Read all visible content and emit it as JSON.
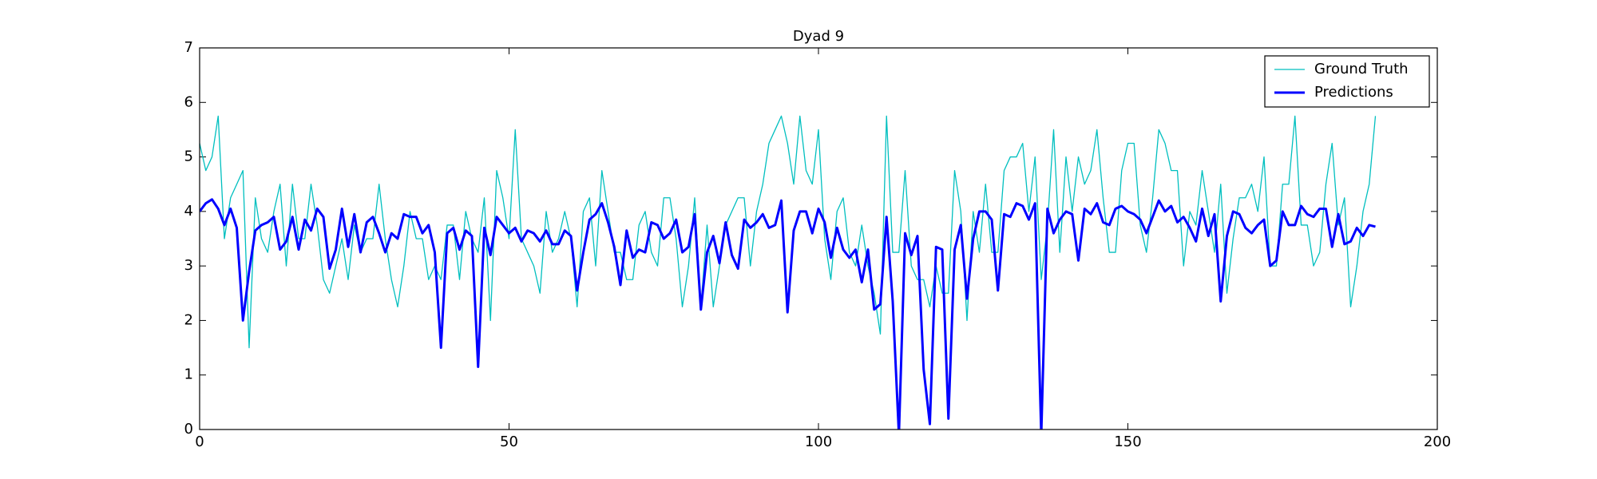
{
  "chart_data": {
    "type": "line",
    "title": "Dyad 9",
    "x": [
      0,
      1,
      2,
      3,
      4,
      5,
      6,
      7,
      8,
      9,
      10,
      11,
      12,
      13,
      14,
      15,
      16,
      17,
      18,
      19,
      20,
      21,
      22,
      23,
      24,
      25,
      26,
      27,
      28,
      29,
      30,
      31,
      32,
      33,
      34,
      35,
      36,
      37,
      38,
      39,
      40,
      41,
      42,
      43,
      44,
      45,
      46,
      47,
      48,
      49,
      50,
      51,
      52,
      53,
      54,
      55,
      56,
      57,
      58,
      59,
      60,
      61,
      62,
      63,
      64,
      65,
      66,
      67,
      68,
      69,
      70,
      71,
      72,
      73,
      74,
      75,
      76,
      77,
      78,
      79,
      80,
      81,
      82,
      83,
      84,
      85,
      86,
      87,
      88,
      89,
      90,
      91,
      92,
      93,
      94,
      95,
      96,
      97,
      98,
      99,
      100,
      101,
      102,
      103,
      104,
      105,
      106,
      107,
      108,
      109,
      110,
      111,
      112,
      113,
      114,
      115,
      116,
      117,
      118,
      119,
      120,
      121,
      122,
      123,
      124,
      125,
      126,
      127,
      128,
      129,
      130,
      131,
      132,
      133,
      134,
      135,
      136,
      137,
      138,
      139,
      140,
      141,
      142,
      143,
      144,
      145,
      146,
      147,
      148,
      149,
      150,
      151,
      152,
      153,
      154,
      155,
      156,
      157,
      158,
      159,
      160,
      161,
      162,
      163,
      164,
      165,
      166,
      167,
      168,
      169,
      170,
      171,
      172,
      173,
      174,
      175,
      176,
      177,
      178,
      179,
      180,
      181,
      182,
      183,
      184,
      185,
      186,
      187,
      188,
      189,
      190
    ],
    "series": [
      {
        "name": "Ground Truth",
        "color": "#00bfbf",
        "width": 1.3,
        "values": [
          5.25,
          4.75,
          5.0,
          5.75,
          3.5,
          4.25,
          4.5,
          4.75,
          1.5,
          4.25,
          3.5,
          3.25,
          4.0,
          4.5,
          3.0,
          4.5,
          3.5,
          3.5,
          4.5,
          3.75,
          2.75,
          2.5,
          3.0,
          3.5,
          2.75,
          3.75,
          3.25,
          3.5,
          3.5,
          4.5,
          3.5,
          2.75,
          2.25,
          3.0,
          4.0,
          3.5,
          3.5,
          2.75,
          3.0,
          2.75,
          3.75,
          3.75,
          2.75,
          4.0,
          3.5,
          3.25,
          4.25,
          2.0,
          4.75,
          4.25,
          3.5,
          5.5,
          3.5,
          3.25,
          3.0,
          2.5,
          4.0,
          3.25,
          3.5,
          4.0,
          3.5,
          2.25,
          4.0,
          4.25,
          3.0,
          4.75,
          4.0,
          3.25,
          3.25,
          2.75,
          2.75,
          3.75,
          4.0,
          3.25,
          3.0,
          4.25,
          4.25,
          3.5,
          2.25,
          3.0,
          4.25,
          2.25,
          3.75,
          2.25,
          3.0,
          3.75,
          4.0,
          4.25,
          4.25,
          3.0,
          4.0,
          4.5,
          5.25,
          5.5,
          5.75,
          5.25,
          4.5,
          5.75,
          4.75,
          4.5,
          5.5,
          3.5,
          2.75,
          4.0,
          4.25,
          3.25,
          3.0,
          3.75,
          3.0,
          2.5,
          1.75,
          5.75,
          3.25,
          3.25,
          4.75,
          3.0,
          2.75,
          2.75,
          2.25,
          3.0,
          2.5,
          2.5,
          4.75,
          4.0,
          2.0,
          4.0,
          3.25,
          4.5,
          3.25,
          3.25,
          4.75,
          5.0,
          5.0,
          5.25,
          4.0,
          5.0,
          2.75,
          3.75,
          5.5,
          3.25,
          5.0,
          4.0,
          5.0,
          4.5,
          4.75,
          5.5,
          4.25,
          3.25,
          3.25,
          4.75,
          5.25,
          5.25,
          3.75,
          3.25,
          4.25,
          5.5,
          5.25,
          4.75,
          4.75,
          3.0,
          4.0,
          3.75,
          4.75,
          4.0,
          3.25,
          4.5,
          2.5,
          3.5,
          4.25,
          4.25,
          4.5,
          4.0,
          5.0,
          3.0,
          3.0,
          4.5,
          4.5,
          5.75,
          3.75,
          3.75,
          3.0,
          3.25,
          4.5,
          5.25,
          3.75,
          4.25,
          2.25,
          3.0,
          4.0,
          4.5,
          5.75
        ]
      },
      {
        "name": "Predictions",
        "color": "#0000ff",
        "width": 3,
        "values": [
          4.0,
          4.15,
          4.22,
          4.05,
          3.75,
          4.05,
          3.7,
          2.0,
          2.9,
          3.65,
          3.75,
          3.8,
          3.9,
          3.3,
          3.45,
          3.9,
          3.3,
          3.85,
          3.65,
          4.05,
          3.9,
          2.95,
          3.3,
          4.05,
          3.35,
          3.95,
          3.25,
          3.8,
          3.9,
          3.6,
          3.25,
          3.6,
          3.5,
          3.95,
          3.9,
          3.9,
          3.6,
          3.75,
          3.25,
          1.5,
          3.6,
          3.7,
          3.3,
          3.65,
          3.55,
          1.15,
          3.7,
          3.2,
          3.9,
          3.75,
          3.6,
          3.7,
          3.45,
          3.65,
          3.6,
          3.45,
          3.65,
          3.4,
          3.4,
          3.65,
          3.55,
          2.55,
          3.25,
          3.85,
          3.95,
          4.15,
          3.8,
          3.35,
          2.65,
          3.65,
          3.15,
          3.3,
          3.25,
          3.8,
          3.75,
          3.5,
          3.6,
          3.85,
          3.25,
          3.35,
          3.95,
          2.2,
          3.25,
          3.55,
          3.05,
          3.8,
          3.2,
          2.95,
          3.85,
          3.7,
          3.8,
          3.95,
          3.7,
          3.75,
          4.2,
          2.15,
          3.65,
          4.0,
          4.0,
          3.6,
          4.05,
          3.8,
          3.15,
          3.7,
          3.3,
          3.15,
          3.3,
          2.7,
          3.3,
          2.2,
          2.3,
          3.9,
          2.35,
          -0.1,
          3.6,
          3.2,
          3.55,
          1.1,
          0.1,
          3.35,
          3.3,
          0.2,
          3.3,
          3.75,
          2.4,
          3.5,
          4.0,
          4.0,
          3.85,
          2.55,
          3.95,
          3.9,
          4.15,
          4.1,
          3.85,
          4.15,
          -0.1,
          4.05,
          3.6,
          3.85,
          4.0,
          3.95,
          3.1,
          4.05,
          3.95,
          4.15,
          3.8,
          3.75,
          4.05,
          4.1,
          4.0,
          3.95,
          3.85,
          3.6,
          3.9,
          4.2,
          4.0,
          4.1,
          3.8,
          3.9,
          3.7,
          3.45,
          4.05,
          3.55,
          3.95,
          2.35,
          3.55,
          4.0,
          3.95,
          3.7,
          3.6,
          3.75,
          3.85,
          3.0,
          3.1,
          4.0,
          3.75,
          3.75,
          4.1,
          3.95,
          3.9,
          4.05,
          4.05,
          3.35,
          3.95,
          3.4,
          3.45,
          3.7,
          3.55,
          3.75,
          3.72
        ]
      }
    ],
    "xlim": [
      0,
      200
    ],
    "xticks": [
      0,
      50,
      100,
      150,
      200
    ],
    "ylim": [
      0,
      7
    ],
    "yticks": [
      0,
      1,
      2,
      3,
      4,
      5,
      6,
      7
    ],
    "legend": "upper right"
  }
}
